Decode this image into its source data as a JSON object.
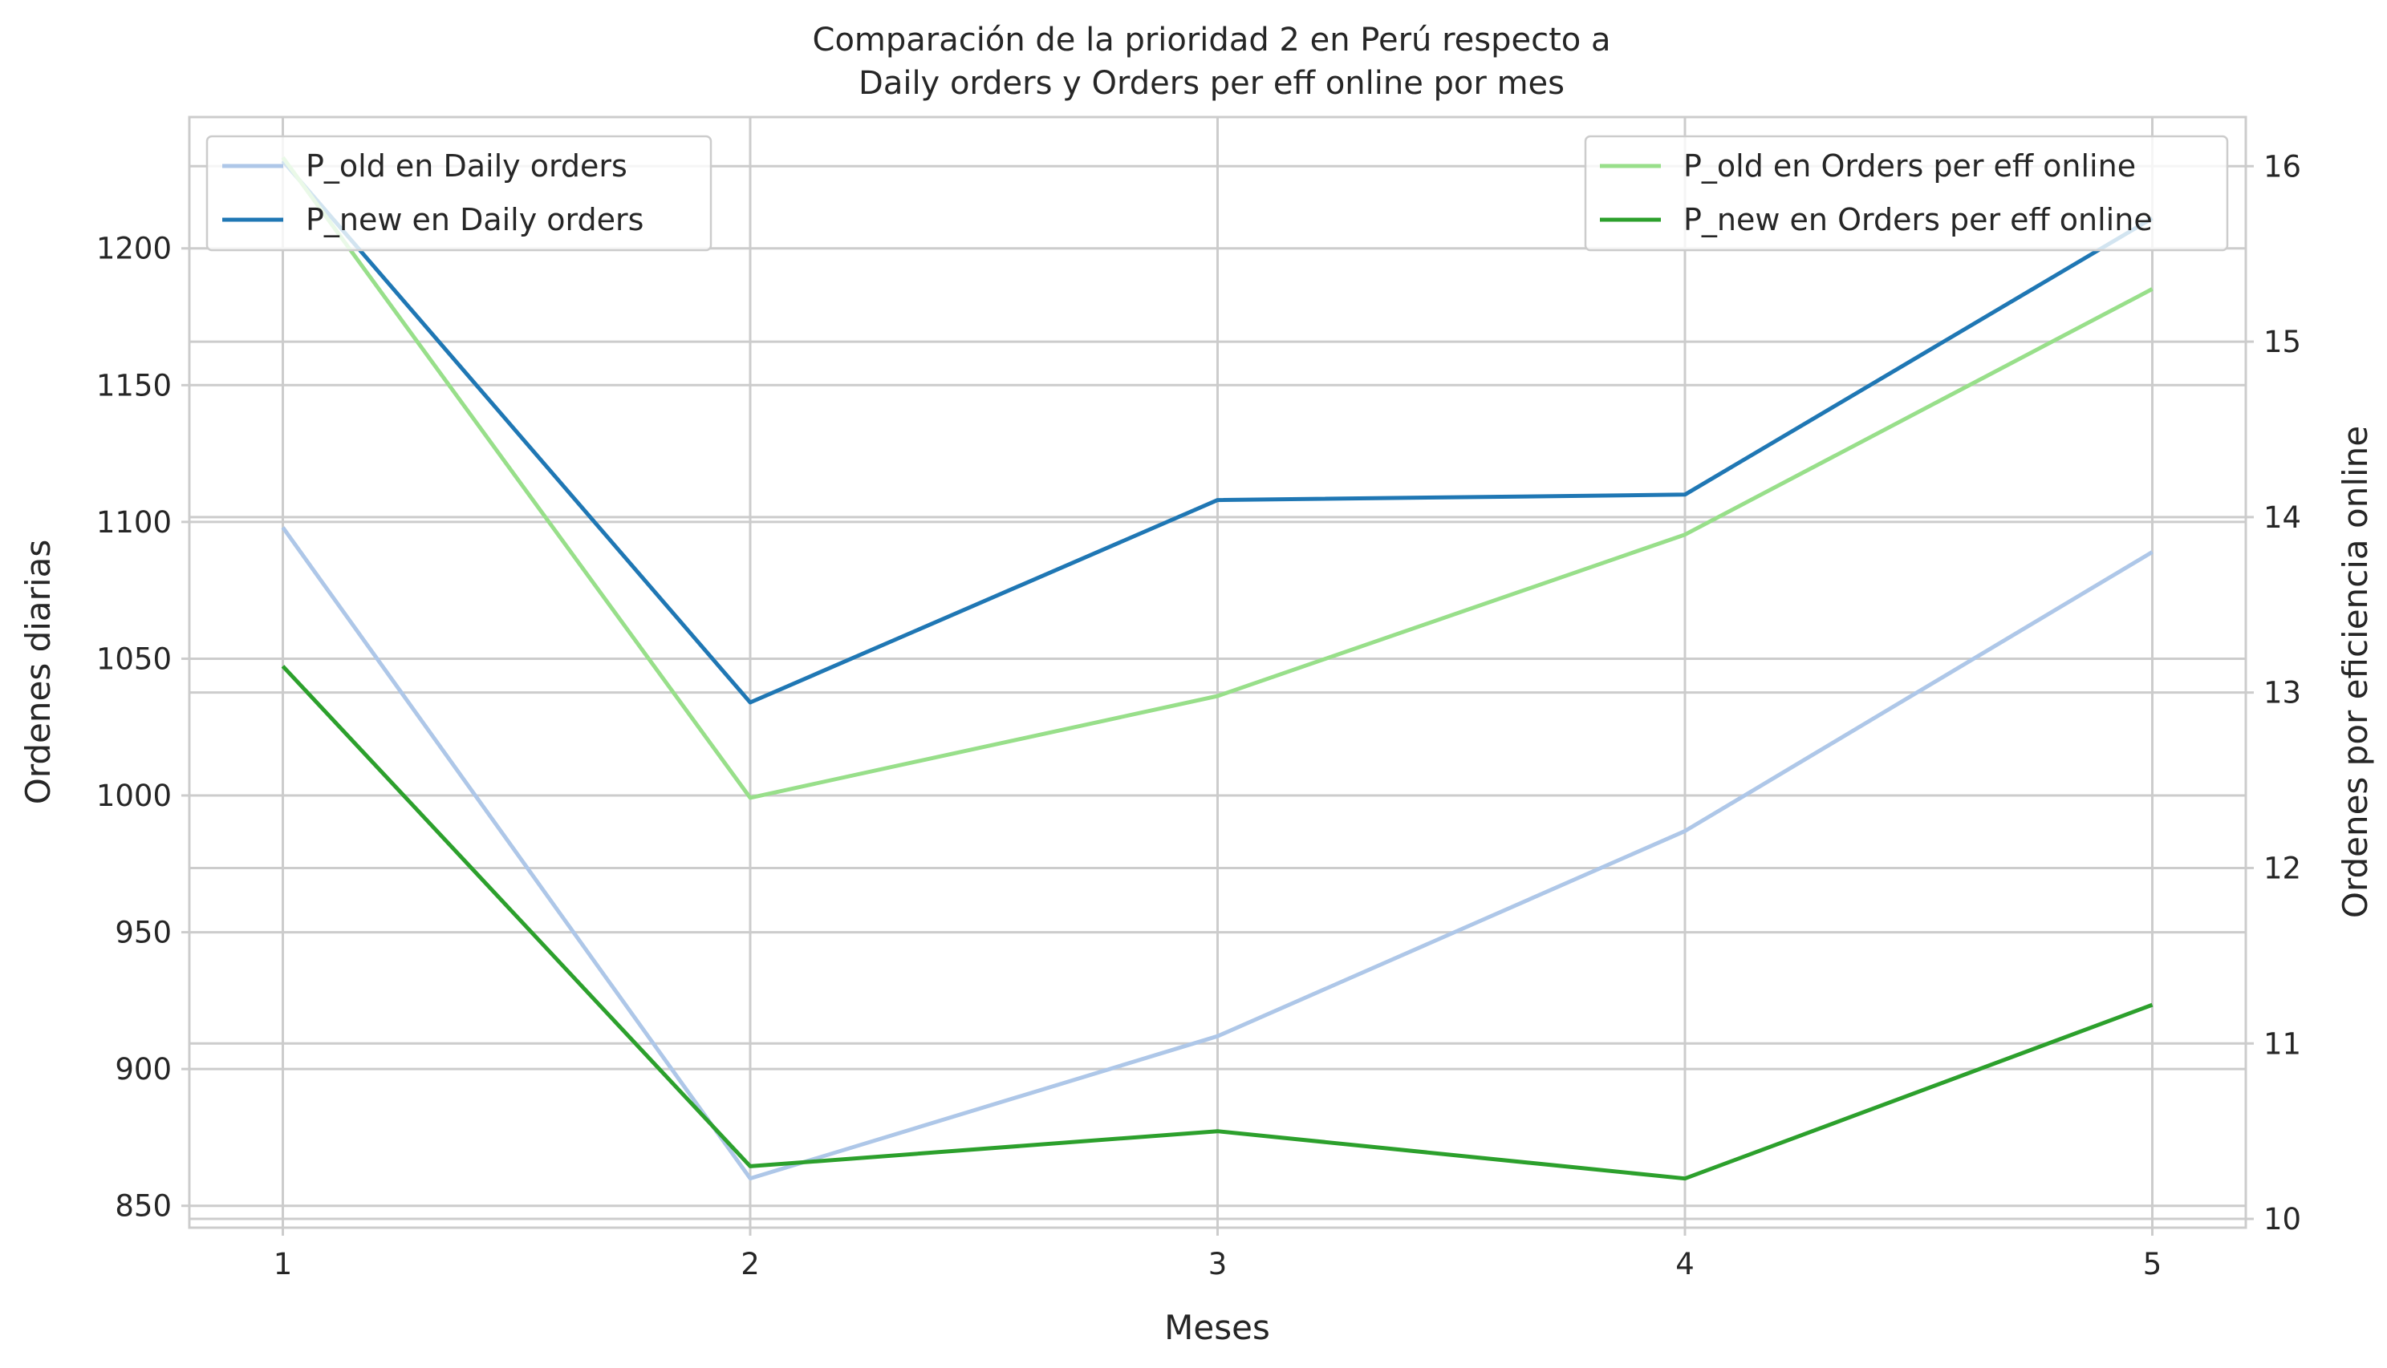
{
  "chart_data": {
    "type": "line",
    "title": [
      "Comparación de la prioridad 2 en Perú respecto a",
      "Daily orders y Orders per eff online por mes"
    ],
    "xlabel": "Meses",
    "ylabel_left": "Ordenes diarias",
    "ylabel_right": "Ordenes por eficiencia online",
    "x": [
      1,
      2,
      3,
      4,
      5
    ],
    "xlim": [
      0.8,
      5.2
    ],
    "left_axis": {
      "ylim": [
        842,
        1248
      ],
      "ticks": [
        850,
        900,
        950,
        1000,
        1050,
        1100,
        1150,
        1200
      ],
      "series": [
        {
          "name": "P_old en Daily orders",
          "color": "#aec7e8",
          "values": [
            1098,
            860,
            912,
            987,
            1089
          ]
        },
        {
          "name": "P_new en Daily orders",
          "color": "#1f77b4",
          "values": [
            1232,
            1034,
            1108,
            1110,
            1211
          ]
        }
      ],
      "legend_position": "upper left"
    },
    "right_axis": {
      "ylim": [
        9.95,
        16.28
      ],
      "ticks": [
        10,
        11,
        12,
        13,
        14,
        15,
        16
      ],
      "series": [
        {
          "name": "P_old en Orders per eff online",
          "color": "#98df8a",
          "values": [
            16.05,
            12.4,
            12.98,
            13.9,
            15.3
          ]
        },
        {
          "name": "P_new en Orders per eff online",
          "color": "#2ca02c",
          "values": [
            13.15,
            10.3,
            10.5,
            10.23,
            11.22
          ]
        }
      ],
      "legend_position": "upper right"
    },
    "grid": true
  }
}
